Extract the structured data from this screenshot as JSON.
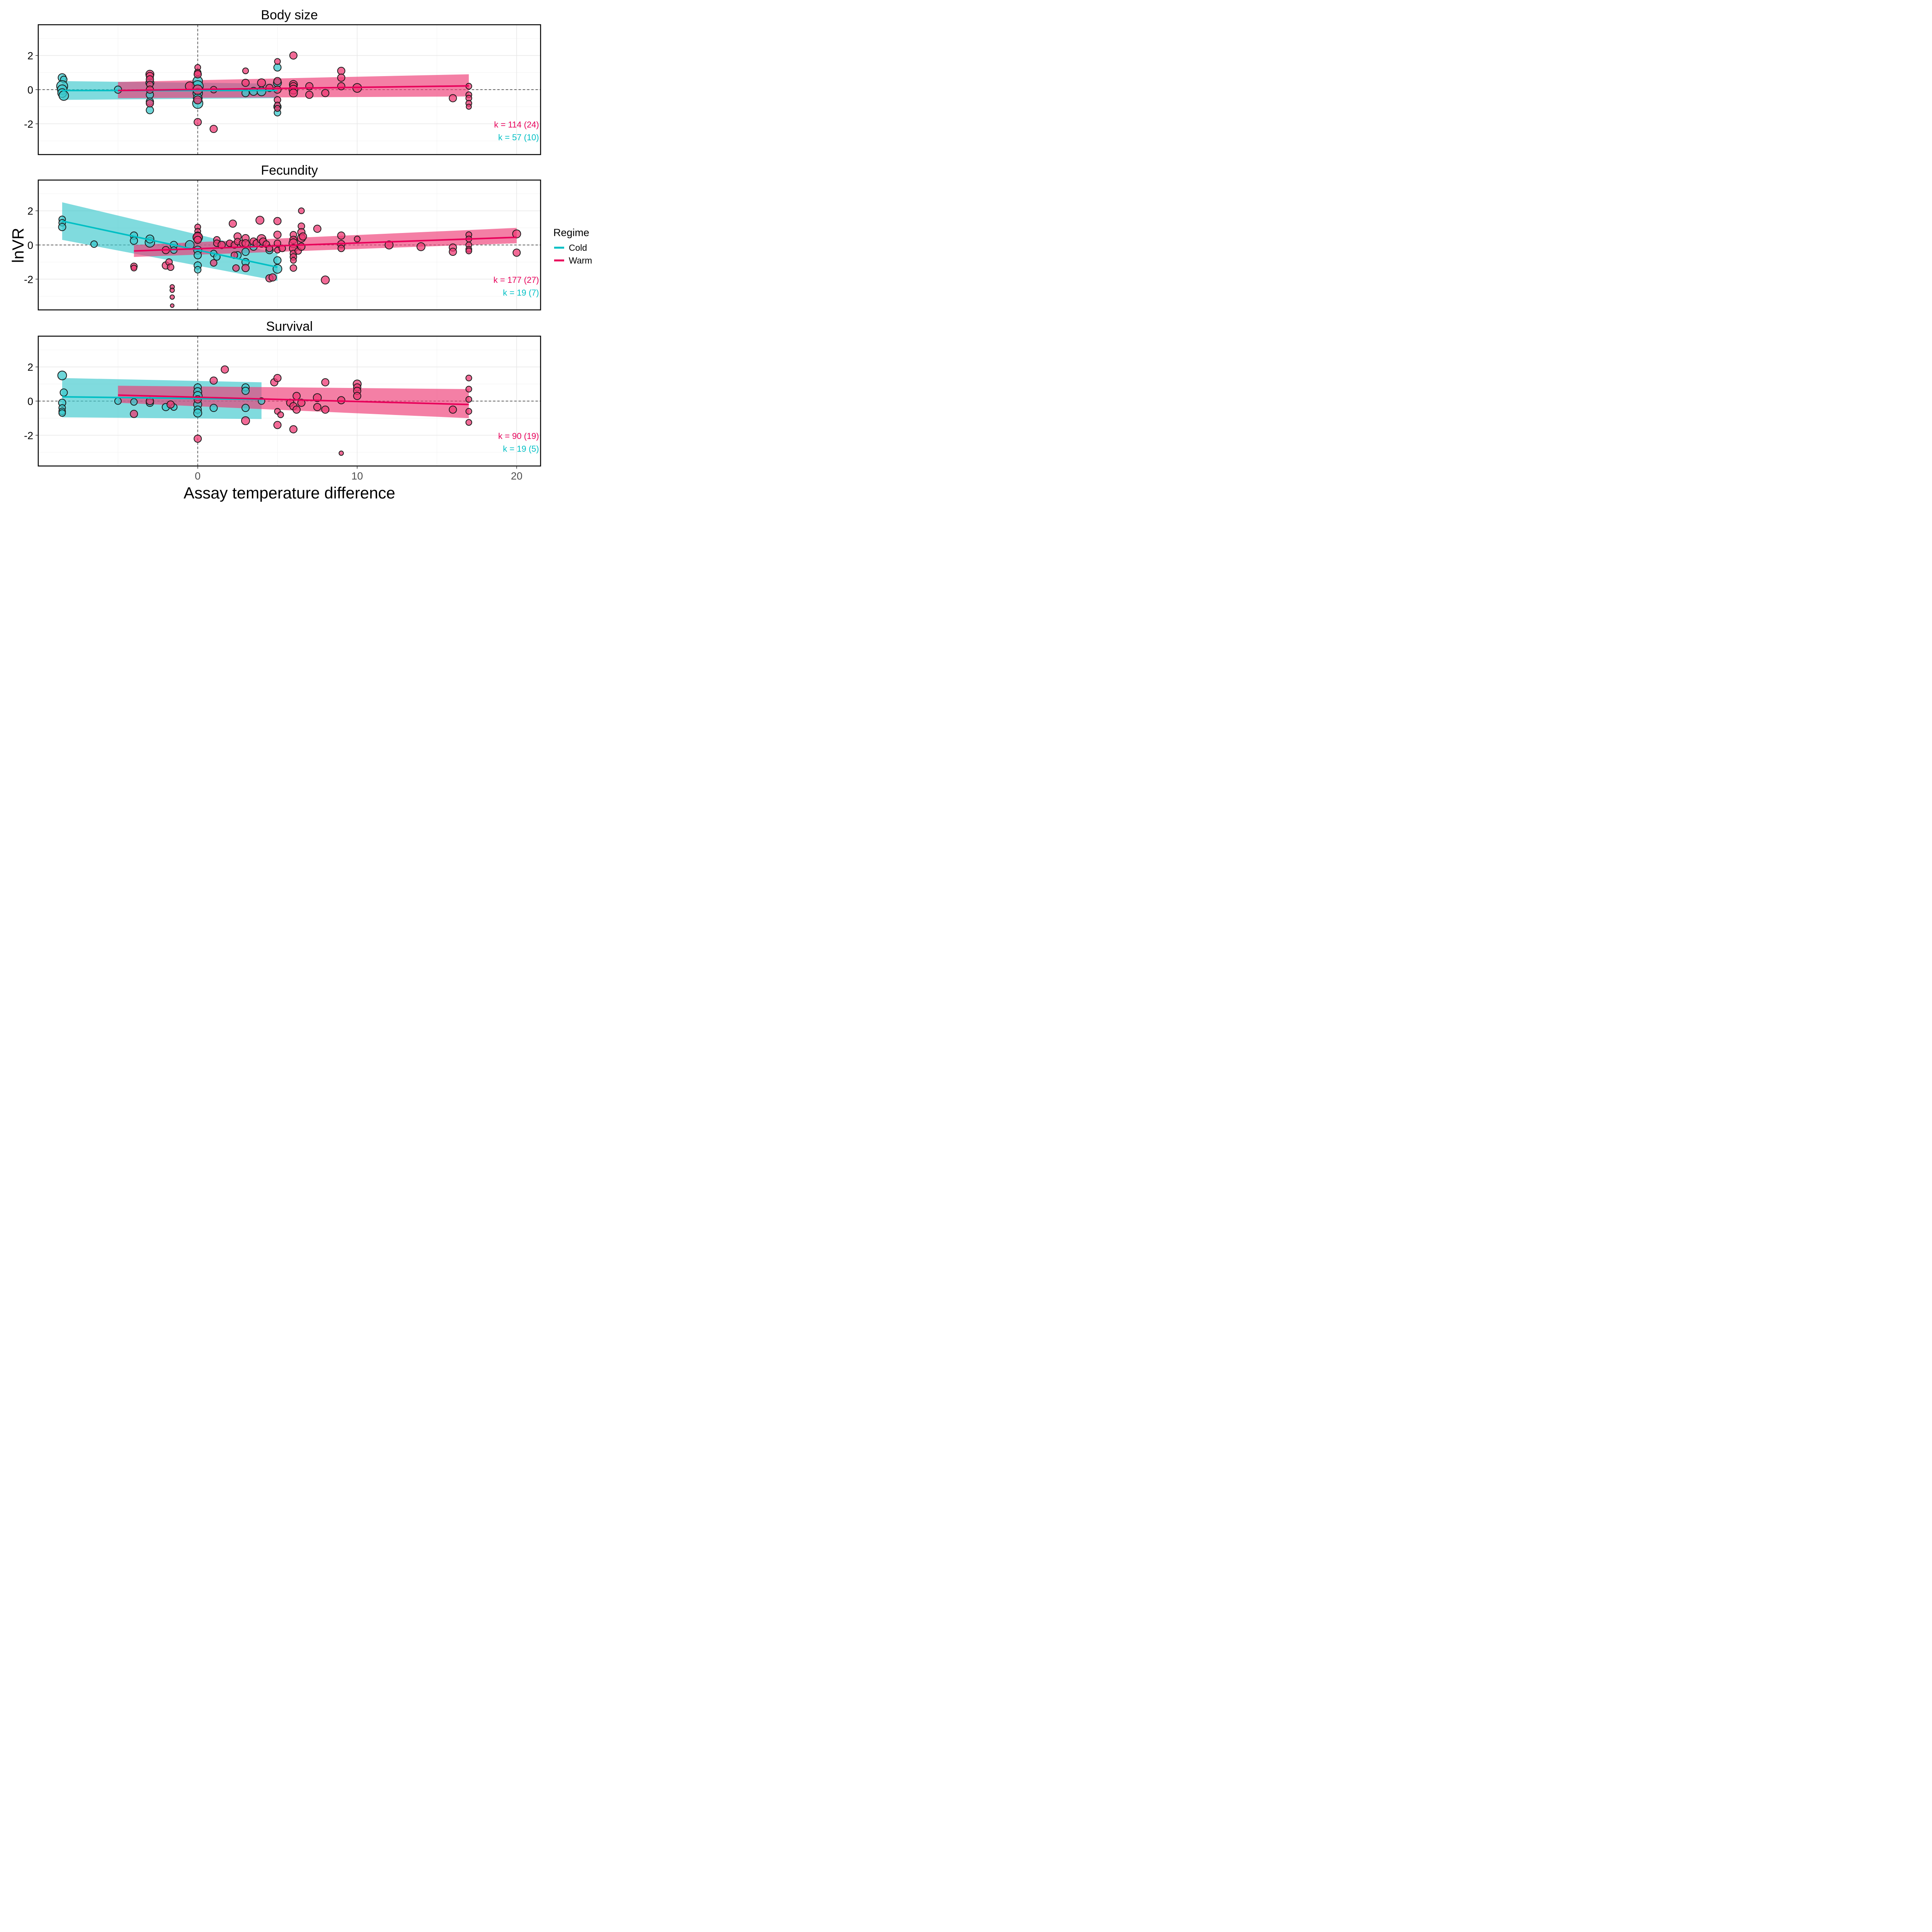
{
  "colors": {
    "cold": "#00BFC4",
    "warm": "#E8005A",
    "cold_fill": "#3CC8CC",
    "warm_fill": "#EE3A74"
  },
  "axes": {
    "xlabel": "Assay temperature difference",
    "ylabel": "lnVR"
  },
  "legend": {
    "title": "Regime",
    "items": [
      {
        "label": "Cold"
      },
      {
        "label": "Warm"
      }
    ]
  },
  "chart_data": [
    {
      "type": "scatter",
      "title": "Body size",
      "xlim": [
        -10,
        21.5
      ],
      "ylim": [
        -3.8,
        3.8
      ],
      "xticks": [
        0,
        10,
        20
      ],
      "yticks": [
        -2,
        0,
        2
      ],
      "k_warm": "k = 114 (24)",
      "k_cold": "k = 57 (10)",
      "fits": {
        "cold": {
          "x": [
            -8.5,
            5
          ],
          "y": [
            -0.05,
            -0.05
          ],
          "lo": [
            -0.6,
            -0.5
          ],
          "hi": [
            0.5,
            0.35
          ]
        },
        "warm": {
          "x": [
            -5,
            17
          ],
          "y": [
            -0.05,
            0.22
          ],
          "lo": [
            -0.5,
            -0.4
          ],
          "hi": [
            0.45,
            0.9
          ]
        }
      },
      "cold_points": [
        [
          -8.5,
          0.7,
          1.1
        ],
        [
          -8.4,
          0.6,
          0.9
        ],
        [
          -8.5,
          0.2,
          1.5
        ],
        [
          -8.5,
          0.0,
          1.3
        ],
        [
          -8.5,
          -0.2,
          1.2
        ],
        [
          -8.4,
          -0.35,
          1.3
        ],
        [
          -5,
          0.0,
          1.0
        ],
        [
          -3,
          0.4,
          1.1
        ],
        [
          -3,
          -0.3,
          1.0
        ],
        [
          -3,
          -0.7,
          1.0
        ],
        [
          -3,
          -1.2,
          1.0
        ],
        [
          0,
          0.5,
          1.3
        ],
        [
          0,
          0.2,
          1.5
        ],
        [
          0,
          -0.2,
          1.3
        ],
        [
          0,
          -0.5,
          1.2
        ],
        [
          0,
          -0.8,
          1.4
        ],
        [
          3,
          -0.2,
          1.0
        ],
        [
          3.5,
          -0.1,
          1.1
        ],
        [
          4,
          -0.1,
          1.2
        ],
        [
          5,
          0.4,
          1.1
        ],
        [
          5,
          1.3,
          1.0
        ],
        [
          5,
          -1.0,
          1.0
        ],
        [
          5,
          -1.35,
          0.9
        ]
      ],
      "warm_points": [
        [
          -3,
          0.9,
          1.1
        ],
        [
          -3,
          0.8,
          1.0
        ],
        [
          -3,
          0.6,
          1.0
        ],
        [
          -3,
          0.3,
          0.9
        ],
        [
          -3,
          0.0,
          1.0
        ],
        [
          -3,
          -0.8,
          1.0
        ],
        [
          -0.5,
          0.2,
          1.2
        ],
        [
          0,
          1.3,
          0.8
        ],
        [
          0,
          1.0,
          0.9
        ],
        [
          0,
          0.9,
          1.0
        ],
        [
          0,
          0.0,
          1.3
        ],
        [
          0,
          -0.6,
          1.1
        ],
        [
          0,
          -1.9,
          1.0
        ],
        [
          1,
          0.0,
          0.9
        ],
        [
          1,
          -2.3,
          1.0
        ],
        [
          3,
          1.1,
          0.8
        ],
        [
          3,
          0.4,
          1.0
        ],
        [
          4,
          0.4,
          1.1
        ],
        [
          4.5,
          0.1,
          1.0
        ],
        [
          5,
          1.65,
          0.8
        ],
        [
          5,
          0.5,
          1.0
        ],
        [
          5,
          0.0,
          1.0
        ],
        [
          5,
          -0.6,
          0.9
        ],
        [
          5,
          -0.9,
          0.8
        ],
        [
          5,
          -1.1,
          0.8
        ],
        [
          6,
          2.0,
          1.0
        ],
        [
          6,
          0.3,
          1.1
        ],
        [
          6,
          0.2,
          1.0
        ],
        [
          6,
          0.0,
          1.2
        ],
        [
          6,
          -0.2,
          1.1
        ],
        [
          7,
          0.2,
          1.0
        ],
        [
          7,
          -0.3,
          1.0
        ],
        [
          8,
          -0.2,
          1.0
        ],
        [
          9,
          1.1,
          1.0
        ],
        [
          9,
          0.7,
          1.0
        ],
        [
          9,
          0.2,
          1.0
        ],
        [
          10,
          0.1,
          1.2
        ],
        [
          16,
          -0.5,
          1.0
        ],
        [
          17,
          0.2,
          0.8
        ],
        [
          17,
          -0.3,
          0.8
        ],
        [
          17,
          -0.5,
          0.8
        ],
        [
          17,
          -0.8,
          0.8
        ],
        [
          17,
          -1.0,
          0.7
        ]
      ]
    },
    {
      "type": "scatter",
      "title": "Fecundity",
      "xlim": [
        -10,
        21.5
      ],
      "ylim": [
        -3.8,
        3.8
      ],
      "xticks": [
        0,
        10,
        20
      ],
      "yticks": [
        -2,
        0,
        2
      ],
      "k_warm": "k = 177 (27)",
      "k_cold": "k = 19 (7)",
      "fits": {
        "cold": {
          "x": [
            -8.5,
            5
          ],
          "y": [
            1.4,
            -1.3
          ],
          "lo": [
            0.3,
            -2.1
          ],
          "hi": [
            2.5,
            -0.5
          ]
        },
        "warm": {
          "x": [
            -4,
            20
          ],
          "y": [
            -0.35,
            0.45
          ],
          "lo": [
            -0.7,
            0.1
          ],
          "hi": [
            0.0,
            1.0
          ]
        }
      },
      "cold_points": [
        [
          -8.5,
          1.5,
          0.9
        ],
        [
          -8.5,
          1.3,
          0.9
        ],
        [
          -8.5,
          1.05,
          1.0
        ],
        [
          -6.5,
          0.05,
          0.9
        ],
        [
          -4,
          0.55,
          1.0
        ],
        [
          -4,
          0.25,
          1.0
        ],
        [
          -3,
          0.15,
          1.3
        ],
        [
          -3,
          0.35,
          1.1
        ],
        [
          -1.5,
          0.0,
          1.0
        ],
        [
          -1.5,
          -0.3,
          0.9
        ],
        [
          -0.5,
          0.0,
          1.2
        ],
        [
          0,
          -0.3,
          1.1
        ],
        [
          0,
          -0.6,
          1.0
        ],
        [
          0,
          -1.2,
          1.0
        ],
        [
          0,
          -1.45,
          0.9
        ],
        [
          1,
          -0.5,
          0.9
        ],
        [
          1.2,
          -0.7,
          0.9
        ],
        [
          2.5,
          -0.6,
          1.0
        ],
        [
          3,
          -0.4,
          1.0
        ],
        [
          3,
          -1.0,
          1.0
        ],
        [
          3.5,
          -0.1,
          1.0
        ],
        [
          4,
          0.1,
          1.1
        ],
        [
          4.5,
          -0.3,
          1.0
        ],
        [
          5,
          -0.9,
          1.0
        ],
        [
          5,
          -1.4,
          1.2
        ]
      ],
      "warm_points": [
        [
          -4,
          -1.25,
          0.9
        ],
        [
          -4,
          -1.35,
          0.8
        ],
        [
          -2,
          -1.2,
          1.0
        ],
        [
          -1.8,
          -1.0,
          0.9
        ],
        [
          -1.7,
          -1.3,
          0.9
        ],
        [
          -2,
          -0.3,
          1.0
        ],
        [
          -1.6,
          -2.45,
          0.6
        ],
        [
          -1.6,
          -2.65,
          0.6
        ],
        [
          -1.6,
          -3.05,
          0.6
        ],
        [
          -1.6,
          -3.55,
          0.5
        ],
        [
          0,
          1.05,
          0.8
        ],
        [
          0,
          0.8,
          0.8
        ],
        [
          0,
          0.55,
          1.0
        ],
        [
          0,
          0.4,
          1.2
        ],
        [
          0,
          0.45,
          1.3
        ],
        [
          0,
          0.3,
          1.0
        ],
        [
          1,
          -1.05,
          0.9
        ],
        [
          1.2,
          0.3,
          0.9
        ],
        [
          1.2,
          0.1,
          0.9
        ],
        [
          1.5,
          0.0,
          1.0
        ],
        [
          2,
          0.1,
          0.9
        ],
        [
          2.2,
          1.25,
          1.0
        ],
        [
          2.3,
          0.0,
          0.9
        ],
        [
          2.3,
          -0.6,
          0.9
        ],
        [
          2.4,
          -1.35,
          0.9
        ],
        [
          2.5,
          0.5,
          1.0
        ],
        [
          2.5,
          0.2,
          0.9
        ],
        [
          2.8,
          0.1,
          0.9
        ],
        [
          3,
          0.4,
          1.0
        ],
        [
          3,
          0.1,
          1.0
        ],
        [
          3,
          -1.35,
          1.0
        ],
        [
          3.5,
          0.2,
          1.0
        ],
        [
          3.7,
          0.1,
          1.0
        ],
        [
          3.9,
          1.45,
          1.1
        ],
        [
          4,
          0.35,
          1.2
        ],
        [
          4.1,
          0.2,
          1.0
        ],
        [
          4.3,
          0.05,
          0.9
        ],
        [
          4.5,
          -0.2,
          0.9
        ],
        [
          4.5,
          -1.95,
          1.0
        ],
        [
          4.7,
          -1.9,
          1.0
        ],
        [
          5,
          1.4,
          1.0
        ],
        [
          5,
          0.6,
          1.0
        ],
        [
          5,
          0.1,
          0.9
        ],
        [
          5,
          -0.3,
          0.8
        ],
        [
          5.3,
          -0.2,
          0.9
        ],
        [
          6,
          0.6,
          0.9
        ],
        [
          6,
          0.3,
          1.0
        ],
        [
          6,
          0.1,
          1.2
        ],
        [
          6,
          -0.2,
          1.1
        ],
        [
          6,
          -0.5,
          0.9
        ],
        [
          6,
          -0.7,
          0.9
        ],
        [
          6,
          -0.9,
          0.8
        ],
        [
          6,
          -1.35,
          0.9
        ],
        [
          6.3,
          -0.35,
          0.9
        ],
        [
          6.5,
          2.0,
          0.8
        ],
        [
          6.5,
          1.1,
          0.9
        ],
        [
          6.5,
          0.75,
          1.0
        ],
        [
          6.5,
          0.4,
          1.1
        ],
        [
          6.6,
          0.5,
          1.0
        ],
        [
          6.5,
          -0.1,
          1.0
        ],
        [
          7.5,
          0.95,
          1.0
        ],
        [
          8,
          -2.05,
          1.1
        ],
        [
          9,
          0.55,
          1.0
        ],
        [
          9,
          0.05,
          1.0
        ],
        [
          9,
          -0.2,
          0.9
        ],
        [
          10,
          0.35,
          0.8
        ],
        [
          12,
          0.0,
          1.1
        ],
        [
          14,
          -0.1,
          1.1
        ],
        [
          16,
          -0.15,
          1.0
        ],
        [
          16,
          -0.4,
          1.0
        ],
        [
          17,
          0.6,
          0.8
        ],
        [
          17,
          0.35,
          0.8
        ],
        [
          17,
          0.0,
          0.8
        ],
        [
          17,
          -0.25,
          0.8
        ],
        [
          17,
          -0.35,
          0.8
        ],
        [
          20,
          0.65,
          1.1
        ],
        [
          20,
          -0.45,
          1.0
        ]
      ]
    },
    {
      "type": "scatter",
      "title": "Survival",
      "xlim": [
        -10,
        21.5
      ],
      "ylim": [
        -3.8,
        3.8
      ],
      "xticks": [
        0,
        10,
        20
      ],
      "yticks": [
        -2,
        0,
        2
      ],
      "k_warm": "k = 90 (19)",
      "k_cold": "k = 19 (5)",
      "fits": {
        "cold": {
          "x": [
            -8.5,
            4
          ],
          "y": [
            0.25,
            0.1
          ],
          "lo": [
            -0.95,
            -1.05
          ],
          "hi": [
            1.35,
            1.1
          ]
        },
        "warm": {
          "x": [
            -5,
            17
          ],
          "y": [
            0.35,
            -0.2
          ],
          "lo": [
            -0.1,
            -1.0
          ],
          "hi": [
            0.9,
            0.7
          ]
        }
      },
      "cold_points": [
        [
          -8.5,
          1.5,
          1.2
        ],
        [
          -8.4,
          0.5,
          1.0
        ],
        [
          -8.5,
          -0.1,
          1.0
        ],
        [
          -8.5,
          -0.4,
          0.9
        ],
        [
          -8.5,
          -0.6,
          0.9
        ],
        [
          -8.5,
          -0.7,
          0.9
        ],
        [
          -5,
          0.0,
          0.9
        ],
        [
          -4,
          -0.05,
          0.9
        ],
        [
          -3,
          -0.1,
          1.0
        ],
        [
          -2,
          -0.35,
          1.0
        ],
        [
          -1.5,
          -0.35,
          0.9
        ],
        [
          0,
          0.8,
          1.0
        ],
        [
          0,
          0.55,
          1.1
        ],
        [
          0,
          0.3,
          1.2
        ],
        [
          0,
          -0.2,
          1.1
        ],
        [
          0,
          -0.5,
          1.0
        ],
        [
          0,
          -0.7,
          1.1
        ],
        [
          1,
          -0.4,
          1.0
        ],
        [
          3,
          0.8,
          1.0
        ],
        [
          3,
          0.6,
          1.0
        ],
        [
          3,
          -0.4,
          1.0
        ],
        [
          4,
          0.0,
          0.9
        ]
      ],
      "warm_points": [
        [
          -3,
          0.0,
          1.0
        ],
        [
          -4,
          -0.75,
          1.0
        ],
        [
          -1.7,
          -0.2,
          1.0
        ],
        [
          0,
          -2.2,
          1.0
        ],
        [
          0,
          0.1,
          1.0
        ],
        [
          1,
          1.2,
          1.0
        ],
        [
          1.7,
          1.85,
          1.0
        ],
        [
          3,
          -1.15,
          1.1
        ],
        [
          4.8,
          1.1,
          1.0
        ],
        [
          5,
          1.35,
          1.0
        ],
        [
          5,
          -0.6,
          0.8
        ],
        [
          5.2,
          -0.8,
          0.8
        ],
        [
          5,
          -1.4,
          1.0
        ],
        [
          5.8,
          -0.1,
          1.0
        ],
        [
          6,
          -1.65,
          1.0
        ],
        [
          6,
          -0.3,
          1.0
        ],
        [
          6.2,
          0.3,
          1.0
        ],
        [
          6.2,
          -0.5,
          1.0
        ],
        [
          6.5,
          -0.1,
          1.0
        ],
        [
          7.5,
          0.2,
          1.1
        ],
        [
          7.5,
          -0.35,
          1.0
        ],
        [
          8,
          1.1,
          1.0
        ],
        [
          8,
          -0.5,
          1.0
        ],
        [
          9,
          -3.05,
          0.6
        ],
        [
          9,
          0.05,
          1.0
        ],
        [
          10,
          1.0,
          1.1
        ],
        [
          10,
          0.8,
          1.0
        ],
        [
          10,
          0.6,
          1.0
        ],
        [
          10,
          0.3,
          1.0
        ],
        [
          16,
          -0.5,
          1.0
        ],
        [
          17,
          1.35,
          0.8
        ],
        [
          17,
          0.7,
          0.8
        ],
        [
          17,
          0.1,
          0.8
        ],
        [
          17,
          -0.6,
          0.8
        ],
        [
          17,
          -1.25,
          0.8
        ]
      ]
    }
  ]
}
